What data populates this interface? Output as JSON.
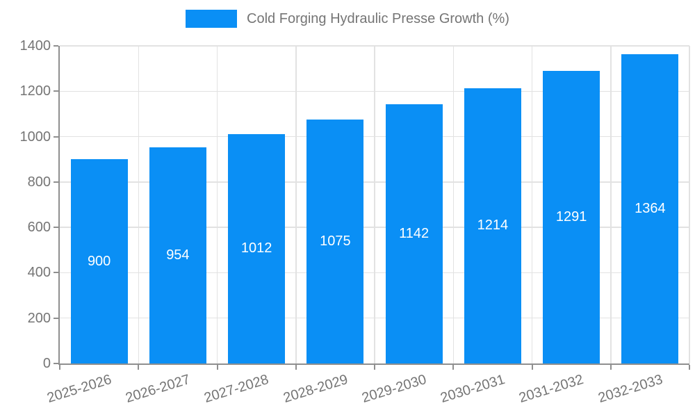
{
  "legend": {
    "label": "Cold Forging Hydraulic Presse Growth (%)"
  },
  "colors": {
    "bar": "#0a8ff5",
    "grid": "#e2e2e2",
    "axis": "#8f8f8f",
    "text": "#757575",
    "value_label": "#ffffff",
    "background": "#ffffff"
  },
  "chart_data": {
    "type": "bar",
    "title": "Cold Forging Hydraulic Presse Growth (%)",
    "categories": [
      "2025-2026",
      "2026-2027",
      "2027-2028",
      "2028-2029",
      "2029-2030",
      "2030-2031",
      "2031-2032",
      "2032-2033"
    ],
    "values": [
      900,
      954,
      1012,
      1075,
      1142,
      1214,
      1291,
      1364
    ],
    "xlabel": "",
    "ylabel": "",
    "ylim": [
      0,
      1400
    ],
    "yticks": [
      0,
      200,
      400,
      600,
      800,
      1000,
      1200,
      1400
    ],
    "grid": true,
    "legend_position": "top",
    "bar_value_labels": true,
    "x_label_rotation_deg": -17
  }
}
